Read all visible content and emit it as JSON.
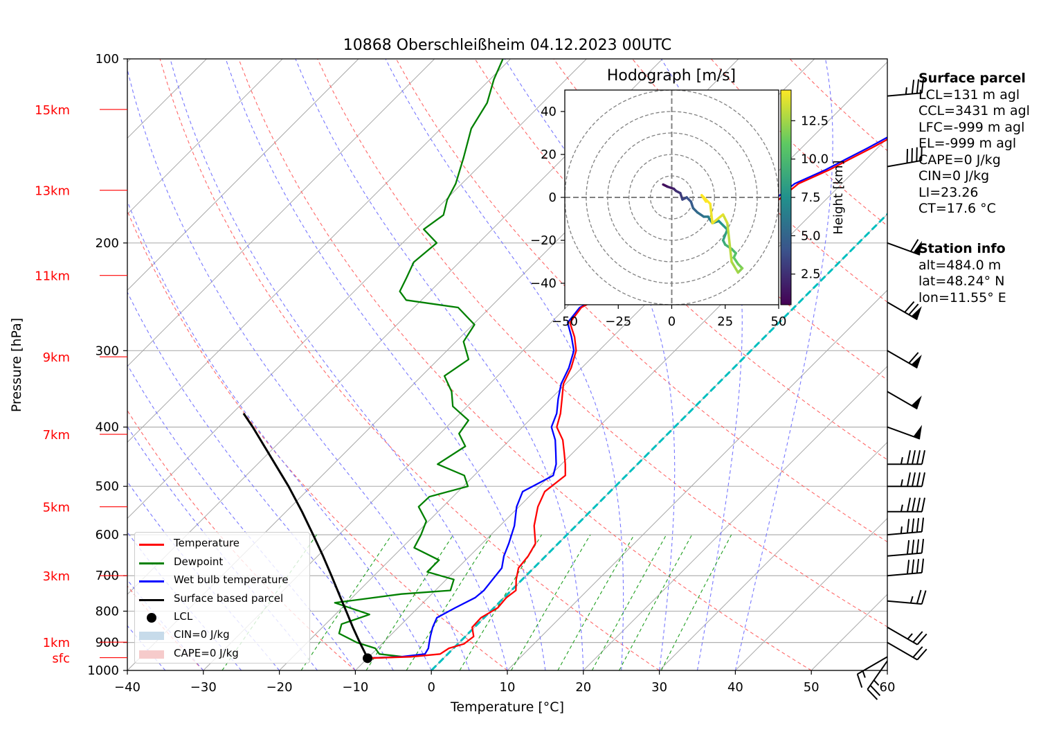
{
  "title": "10868 Oberschleißheim 04.12.2023 00UTC",
  "axes": {
    "xlabel": "Temperature [°C]",
    "ylabel": "Pressure [hPa]",
    "x_ticks": [
      "−40",
      "−30",
      "−20",
      "−10",
      "0",
      "10",
      "20",
      "30",
      "40",
      "50",
      "60"
    ],
    "y_ticks": [
      "100",
      "200",
      "300",
      "400",
      "500",
      "600",
      "700",
      "800",
      "900",
      "1000"
    ],
    "height_labels": [
      "15km",
      "13km",
      "11km",
      "9km",
      "7km",
      "5km",
      "3km",
      "1km",
      "sfc"
    ]
  },
  "hodograph": {
    "title": "Hodograph [m/s]",
    "x_ticks": [
      "−50",
      "−25",
      "0",
      "25",
      "50"
    ],
    "y_ticks": [
      "40",
      "20",
      "0",
      "−20",
      "−40"
    ],
    "colorbar_label": "Height [km]",
    "colorbar_ticks": [
      "2.5",
      "5.0",
      "7.5",
      "10.0",
      "12.5"
    ]
  },
  "legend": [
    {
      "label": "Temperature",
      "kind": "line",
      "color": "#ff0000"
    },
    {
      "label": "Dewpoint",
      "kind": "line",
      "color": "#008000"
    },
    {
      "label": "Wet bulb temperature",
      "kind": "line",
      "color": "#0000ff"
    },
    {
      "label": "Surface based parcel",
      "kind": "line",
      "color": "#000000"
    },
    {
      "label": "LCL",
      "kind": "dot",
      "color": "#000000"
    },
    {
      "label": "CIN=0 J/kg",
      "kind": "patch",
      "color": "#c7dbea"
    },
    {
      "label": "CAPE=0 J/kg",
      "kind": "patch",
      "color": "#f6cbcb"
    }
  ],
  "surface_parcel": {
    "heading": "Surface parcel",
    "lines": [
      "LCL=131 m agl",
      "CCL=3431 m agl",
      "LFC=-999 m agl",
      "EL=-999 m agl",
      "CAPE=0 J/kg",
      "CIN=0 J/kg",
      "LI=23.26",
      "CT=17.6 °C"
    ]
  },
  "station_info": {
    "heading": "Station info",
    "lines": [
      "alt=484.0 m",
      "lat=48.24° N",
      "lon=11.55° E"
    ]
  },
  "chart_data": {
    "type": "skew-t",
    "title": "10868 Oberschleißheim 04.12.2023 00UTC",
    "xlabel": "Temperature [°C]",
    "ylabel": "Pressure [hPa]",
    "xlim": [
      -40,
      60
    ],
    "ylim": [
      1000,
      100
    ],
    "y_scale": "log",
    "grid": true,
    "legend_position": "bottom-left",
    "colors": {
      "temperature": "#ff0000",
      "dewpoint": "#008000",
      "wetbulb": "#0000ff",
      "parcel": "#000000",
      "isotherm0": "#00bfbf"
    },
    "series": [
      {
        "name": "Temperature",
        "points": [
          [
            955,
            -10
          ],
          [
            950,
            -4.5
          ],
          [
            940,
            -1
          ],
          [
            920,
            -0.6
          ],
          [
            905,
            0.8
          ],
          [
            880,
            1.1
          ],
          [
            850,
            -0.3
          ],
          [
            820,
            -0.4
          ],
          [
            790,
            0.5
          ],
          [
            760,
            0.3
          ],
          [
            740,
            0.6
          ],
          [
            710,
            -0.8
          ],
          [
            680,
            -2
          ],
          [
            650,
            -2.3
          ],
          [
            620,
            -3
          ],
          [
            580,
            -5.5
          ],
          [
            540,
            -7.5
          ],
          [
            510,
            -8.6
          ],
          [
            480,
            -8
          ],
          [
            460,
            -9.5
          ],
          [
            440,
            -11.2
          ],
          [
            420,
            -13
          ],
          [
            400,
            -15.5
          ],
          [
            380,
            -16.8
          ],
          [
            360,
            -18.5
          ],
          [
            340,
            -20.3
          ],
          [
            320,
            -21.4
          ],
          [
            300,
            -23
          ],
          [
            285,
            -25
          ],
          [
            270,
            -27.5
          ],
          [
            255,
            -28
          ],
          [
            242,
            -26.3
          ],
          [
            235,
            -24.5
          ],
          [
            225,
            -21.6
          ],
          [
            215,
            -19.4
          ],
          [
            200,
            -18.6
          ],
          [
            190,
            -17.9
          ],
          [
            180,
            -17.3
          ],
          [
            170,
            -16.2
          ],
          [
            160,
            -15.7
          ],
          [
            152,
            -13.5
          ],
          [
            146,
            -12.2
          ],
          [
            140,
            -10.8
          ],
          [
            133,
            -9.3
          ],
          [
            128,
            -8.4
          ],
          [
            122,
            -7.3
          ],
          [
            117,
            -6.1
          ],
          [
            112,
            -4.6
          ],
          [
            108,
            -3.5
          ],
          [
            104,
            -2.5
          ],
          [
            101,
            -1.8
          ],
          [
            99,
            -1.2
          ]
        ]
      },
      {
        "name": "Dewpoint",
        "points": [
          [
            955,
            -10
          ],
          [
            950,
            -5.5
          ],
          [
            940,
            -9
          ],
          [
            920,
            -10.3
          ],
          [
            900,
            -13.5
          ],
          [
            870,
            -17
          ],
          [
            840,
            -17.9
          ],
          [
            810,
            -15.5
          ],
          [
            775,
            -21.6
          ],
          [
            750,
            -14
          ],
          [
            740,
            -8
          ],
          [
            710,
            -9
          ],
          [
            690,
            -13.5
          ],
          [
            660,
            -13.5
          ],
          [
            630,
            -18.4
          ],
          [
            600,
            -19.2
          ],
          [
            570,
            -20.3
          ],
          [
            540,
            -23.2
          ],
          [
            520,
            -23.1
          ],
          [
            500,
            -19.4
          ],
          [
            480,
            -21.3
          ],
          [
            460,
            -26.3
          ],
          [
            430,
            -25
          ],
          [
            410,
            -27.5
          ],
          [
            390,
            -28
          ],
          [
            370,
            -31.9
          ],
          [
            350,
            -34
          ],
          [
            330,
            -37
          ],
          [
            310,
            -36
          ],
          [
            290,
            -39
          ],
          [
            272,
            -39.8
          ],
          [
            255,
            -44.2
          ],
          [
            248,
            -52
          ],
          [
            240,
            -54
          ],
          [
            228,
            -54.9
          ],
          [
            215,
            -56
          ],
          [
            200,
            -55.5
          ],
          [
            190,
            -59
          ],
          [
            180,
            -58.3
          ],
          [
            170,
            -59.8
          ],
          [
            160,
            -60.8
          ],
          [
            145,
            -63.2
          ],
          [
            130,
            -66
          ],
          [
            118,
            -67.3
          ],
          [
            108,
            -69.5
          ],
          [
            100,
            -71
          ],
          [
            94,
            -72.3
          ]
        ]
      },
      {
        "name": "Wet bulb temperature",
        "points": [
          [
            955,
            -10
          ],
          [
            950,
            -5.8
          ],
          [
            940,
            -3
          ],
          [
            920,
            -3.3
          ],
          [
            905,
            -3.8
          ],
          [
            880,
            -4.6
          ],
          [
            850,
            -5.5
          ],
          [
            820,
            -6.2
          ],
          [
            790,
            -5.1
          ],
          [
            760,
            -3.8
          ],
          [
            740,
            -3.6
          ],
          [
            710,
            -3.9
          ],
          [
            680,
            -4.2
          ],
          [
            650,
            -5.5
          ],
          [
            620,
            -6.5
          ],
          [
            580,
            -8.1
          ],
          [
            540,
            -10.3
          ],
          [
            510,
            -11.5
          ],
          [
            480,
            -9.6
          ],
          [
            460,
            -10.7
          ],
          [
            440,
            -12.3
          ],
          [
            420,
            -14
          ],
          [
            400,
            -16.2
          ],
          [
            380,
            -17.3
          ],
          [
            360,
            -19
          ],
          [
            340,
            -20.6
          ],
          [
            320,
            -21.7
          ],
          [
            300,
            -23.3
          ],
          [
            285,
            -25.4
          ],
          [
            270,
            -27.8
          ],
          [
            255,
            -28.2
          ],
          [
            242,
            -26.6
          ],
          [
            235,
            -24.8
          ],
          [
            225,
            -21.9
          ],
          [
            215,
            -19.8
          ],
          [
            200,
            -19.1
          ],
          [
            190,
            -18.3
          ],
          [
            180,
            -17.8
          ],
          [
            170,
            -16.8
          ],
          [
            160,
            -16.2
          ],
          [
            152,
            -14
          ],
          [
            146,
            -12.7
          ],
          [
            140,
            -11.3
          ],
          [
            133,
            -9.8
          ],
          [
            128,
            -8.8
          ],
          [
            122,
            -7.8
          ],
          [
            117,
            -6.6
          ],
          [
            112,
            -5.1
          ],
          [
            108,
            -4
          ],
          [
            104,
            -3
          ],
          [
            101,
            -2.3
          ],
          [
            99,
            -1.8
          ]
        ]
      },
      {
        "name": "Surface based parcel",
        "points": [
          [
            955,
            -10
          ],
          [
            900,
            -13.1
          ],
          [
            850,
            -16
          ],
          [
            800,
            -19
          ],
          [
            750,
            -22.2
          ],
          [
            700,
            -25.6
          ],
          [
            650,
            -29.3
          ],
          [
            600,
            -33.4
          ],
          [
            550,
            -37.9
          ],
          [
            500,
            -43
          ],
          [
            450,
            -48.9
          ],
          [
            400,
            -55.5
          ],
          [
            380,
            -58.5
          ]
        ]
      }
    ],
    "lcl": {
      "pressure": 955,
      "temperature": -10
    },
    "hodograph": {
      "xlim": [
        -50,
        50
      ],
      "ylim": [
        -50,
        50
      ],
      "rings": [
        10,
        20,
        30,
        40,
        50
      ],
      "colorbar_range": [
        0.5,
        14.5
      ],
      "points": [
        [
          -4,
          6,
          0.5
        ],
        [
          -2,
          5,
          1
        ],
        [
          1,
          4,
          1.5
        ],
        [
          2,
          3,
          2
        ],
        [
          4,
          2,
          2.5
        ],
        [
          5,
          -1,
          3
        ],
        [
          7,
          0,
          3.5
        ],
        [
          9,
          -2,
          4
        ],
        [
          10,
          -5,
          4.5
        ],
        [
          12,
          -7,
          5
        ],
        [
          15,
          -9,
          5.5
        ],
        [
          17,
          -9,
          6
        ],
        [
          19,
          -12,
          6.5
        ],
        [
          22,
          -11,
          7
        ],
        [
          24,
          -13,
          7.5
        ],
        [
          26,
          -15,
          8
        ],
        [
          24,
          -20,
          8.5
        ],
        [
          25,
          -22,
          9
        ],
        [
          28,
          -24,
          9.5
        ],
        [
          30,
          -26,
          10
        ],
        [
          29,
          -28,
          10.5
        ],
        [
          31,
          -31,
          11
        ],
        [
          33,
          -33,
          11.5
        ],
        [
          31,
          -35,
          12
        ],
        [
          28,
          -30,
          12.5
        ],
        [
          26,
          -12,
          13
        ],
        [
          24,
          -8,
          13.5
        ],
        [
          19,
          -12,
          14
        ],
        [
          18,
          -3,
          14.2
        ],
        [
          14,
          1,
          14.5
        ],
        [
          16,
          -2,
          14.5
        ]
      ]
    },
    "wind_barbs": [
      {
        "p": 965,
        "speed": 25,
        "dir": 35
      },
      {
        "p": 950,
        "speed": 15,
        "dir": 60
      },
      {
        "p": 900,
        "speed": 20,
        "dir": 300
      },
      {
        "p": 850,
        "speed": 25,
        "dir": 300
      },
      {
        "p": 770,
        "speed": 25,
        "dir": 275
      },
      {
        "p": 700,
        "speed": 40,
        "dir": 265
      },
      {
        "p": 650,
        "speed": 40,
        "dir": 265
      },
      {
        "p": 600,
        "speed": 45,
        "dir": 265
      },
      {
        "p": 550,
        "speed": 45,
        "dir": 270
      },
      {
        "p": 500,
        "speed": 45,
        "dir": 270
      },
      {
        "p": 460,
        "speed": 45,
        "dir": 270
      },
      {
        "p": 400,
        "speed": 50,
        "dir": 290
      },
      {
        "p": 350,
        "speed": 50,
        "dir": 300
      },
      {
        "p": 300,
        "speed": 60,
        "dir": 300
      },
      {
        "p": 250,
        "speed": 70,
        "dir": 300
      },
      {
        "p": 200,
        "speed": 60,
        "dir": 290
      },
      {
        "p": 150,
        "speed": 40,
        "dir": 260
      },
      {
        "p": 115,
        "speed": 35,
        "dir": 265
      }
    ]
  }
}
